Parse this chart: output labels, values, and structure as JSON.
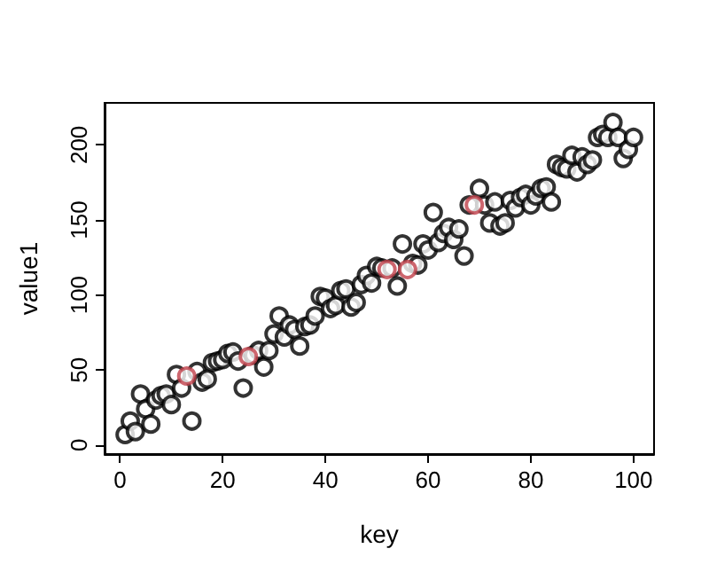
{
  "chart_data": {
    "type": "scatter",
    "xlabel": "key",
    "ylabel": "value1",
    "xlim": [
      -3,
      104
    ],
    "ylim": [
      -6,
      228
    ],
    "xticks": [
      0,
      20,
      40,
      60,
      80,
      100
    ],
    "yticks": [
      0,
      50,
      100,
      150,
      200
    ],
    "grid": false,
    "marker": "circle",
    "series": [
      {
        "color": "#000000",
        "x": [
          1,
          2,
          3,
          4,
          5,
          6,
          7,
          8,
          9,
          10,
          11,
          12,
          14,
          15,
          16,
          17,
          18,
          19,
          20,
          21,
          22,
          23,
          24,
          26,
          27,
          28,
          29,
          30,
          31,
          32,
          33,
          34,
          35,
          36,
          37,
          38,
          39,
          40,
          41,
          42,
          43,
          44,
          45,
          46,
          47,
          48,
          49,
          50,
          51,
          53,
          54,
          55,
          57,
          58,
          59,
          60,
          61,
          62,
          63,
          64,
          65,
          66,
          67,
          68,
          70,
          71,
          72,
          73,
          74,
          75,
          76,
          77,
          78,
          79,
          80,
          81,
          82,
          83,
          84,
          85,
          86,
          87,
          88,
          89,
          90,
          91,
          92,
          93,
          94,
          95,
          96,
          97,
          98,
          99,
          100
        ],
        "values": [
          7,
          16,
          9,
          34,
          24,
          14,
          30,
          33,
          34,
          27,
          47,
          38,
          16,
          49,
          42,
          44,
          55,
          56,
          57,
          61,
          62,
          56,
          38,
          60,
          63,
          52,
          63,
          74,
          86,
          72,
          80,
          77,
          66,
          79,
          80,
          86,
          99,
          98,
          91,
          93,
          103,
          104,
          92,
          95,
          107,
          113,
          108,
          119,
          118,
          118,
          106,
          134,
          121,
          120,
          134,
          130,
          155,
          135,
          141,
          145,
          137,
          144,
          126,
          160,
          171,
          160,
          148,
          162,
          146,
          148,
          163,
          158,
          165,
          167,
          160,
          166,
          171,
          172,
          162,
          187,
          185,
          184,
          193,
          182,
          192,
          187,
          190,
          205,
          207,
          205,
          215,
          205,
          191,
          197,
          205
        ]
      },
      {
        "color": "#c0404a",
        "x": [
          13,
          25,
          52,
          56,
          69
        ],
        "values": [
          46,
          59,
          117,
          117,
          160
        ]
      }
    ]
  }
}
